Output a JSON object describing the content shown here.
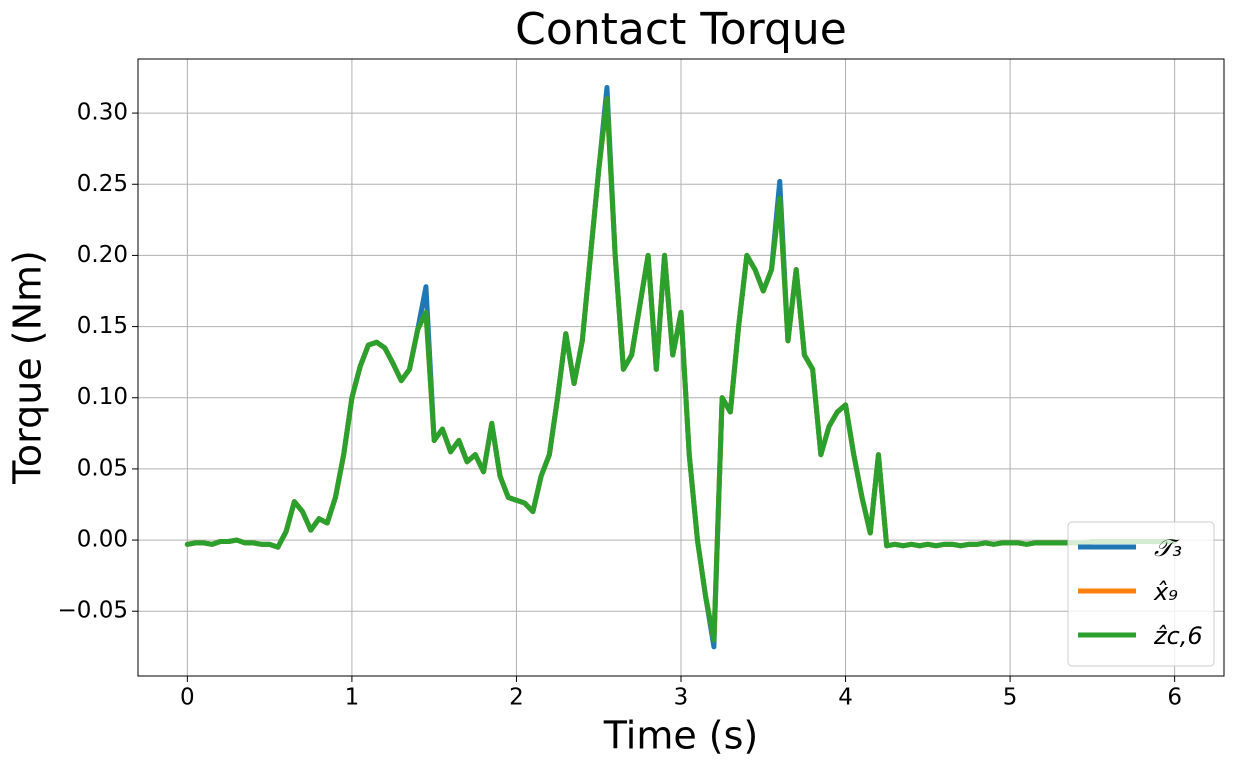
{
  "chart_data": {
    "type": "line",
    "title": "Contact Torque",
    "xlabel": "Time (s)",
    "ylabel": "Torque (Nm)",
    "x": [
      0,
      0.05,
      0.1,
      0.15,
      0.2,
      0.25,
      0.3,
      0.35,
      0.4,
      0.45,
      0.5,
      0.55,
      0.6,
      0.65,
      0.7,
      0.75,
      0.8,
      0.85,
      0.9,
      0.95,
      1,
      1.05,
      1.1,
      1.15,
      1.2,
      1.25,
      1.3,
      1.35,
      1.4,
      1.45,
      1.5,
      1.55,
      1.6,
      1.65,
      1.7,
      1.75,
      1.8,
      1.85,
      1.9,
      1.95,
      2,
      2.05,
      2.1,
      2.15,
      2.2,
      2.25,
      2.3,
      2.35,
      2.4,
      2.45,
      2.5,
      2.55,
      2.6,
      2.65,
      2.7,
      2.75,
      2.8,
      2.85,
      2.9,
      2.95,
      3,
      3.05,
      3.1,
      3.15,
      3.2,
      3.25,
      3.3,
      3.35,
      3.4,
      3.45,
      3.5,
      3.55,
      3.6,
      3.65,
      3.7,
      3.75,
      3.8,
      3.85,
      3.9,
      3.95,
      4,
      4.05,
      4.1,
      4.15,
      4.2,
      4.25,
      4.3,
      4.35,
      4.4,
      4.45,
      4.5,
      4.55,
      4.6,
      4.65,
      4.7,
      4.75,
      4.8,
      4.85,
      4.9,
      4.95,
      5,
      5.05,
      5.1,
      5.15,
      5.2,
      5.25,
      5.3,
      5.35,
      5.4,
      5.45,
      5.5,
      5.55,
      5.6,
      5.65,
      5.7,
      5.75,
      5.8,
      5.85,
      5.9,
      5.95,
      6
    ],
    "series": [
      {
        "name": "𝒯₃",
        "color": "#1f77b4",
        "values": [
          -0.003,
          -0.002,
          -0.002,
          -0.003,
          -0.001,
          -0.001,
          0,
          -0.002,
          -0.002,
          -0.003,
          -0.003,
          -0.005,
          0.006,
          0.027,
          0.02,
          0.007,
          0.015,
          0.012,
          0.03,
          0.06,
          0.1,
          0.122,
          0.137,
          0.139,
          0.135,
          0.124,
          0.112,
          0.12,
          0.148,
          0.178,
          0.07,
          0.078,
          0.062,
          0.07,
          0.055,
          0.06,
          0.048,
          0.082,
          0.045,
          0.03,
          0.028,
          0.026,
          0.02,
          0.045,
          0.06,
          0.1,
          0.145,
          0.11,
          0.14,
          0.2,
          0.26,
          0.318,
          0.2,
          0.12,
          0.13,
          0.165,
          0.2,
          0.12,
          0.2,
          0.13,
          0.16,
          0.06,
          0,
          -0.04,
          -0.075,
          0.1,
          0.09,
          0.15,
          0.2,
          0.19,
          0.175,
          0.19,
          0.252,
          0.14,
          0.19,
          0.13,
          0.12,
          0.06,
          0.08,
          0.09,
          0.095,
          0.06,
          0.03,
          0.005,
          0.06,
          -0.004,
          -0.003,
          -0.004,
          -0.003,
          -0.004,
          -0.003,
          -0.004,
          -0.003,
          -0.003,
          -0.004,
          -0.003,
          -0.003,
          -0.002,
          -0.003,
          -0.002,
          -0.002,
          -0.002,
          -0.003,
          -0.002,
          -0.002,
          -0.002,
          -0.002,
          -0.002,
          -0.002,
          -0.002,
          -0.001,
          -0.001,
          -0.001,
          -0.001,
          -0.001,
          -0.001,
          -0.001,
          -0.001,
          -0.001,
          -0.001,
          -0.001
        ]
      },
      {
        "name": "x̂₉",
        "color": "#ff7f0e",
        "values": [
          -0.003,
          -0.002,
          -0.002,
          -0.003,
          -0.001,
          -0.001,
          0,
          -0.002,
          -0.002,
          -0.003,
          -0.003,
          -0.005,
          0.006,
          0.027,
          0.02,
          0.007,
          0.015,
          0.012,
          0.03,
          0.06,
          0.1,
          0.122,
          0.137,
          0.139,
          0.135,
          0.124,
          0.112,
          0.12,
          0.148,
          0.16,
          0.07,
          0.078,
          0.062,
          0.07,
          0.055,
          0.06,
          0.048,
          0.082,
          0.045,
          0.03,
          0.028,
          0.026,
          0.02,
          0.045,
          0.06,
          0.1,
          0.145,
          0.11,
          0.14,
          0.2,
          0.26,
          0.31,
          0.2,
          0.12,
          0.13,
          0.165,
          0.2,
          0.12,
          0.2,
          0.13,
          0.16,
          0.06,
          0,
          -0.04,
          -0.07,
          0.1,
          0.09,
          0.15,
          0.2,
          0.19,
          0.175,
          0.19,
          0.24,
          0.14,
          0.19,
          0.13,
          0.12,
          0.06,
          0.08,
          0.09,
          0.095,
          0.06,
          0.03,
          0.005,
          0.06,
          -0.004,
          -0.003,
          -0.004,
          -0.003,
          -0.004,
          -0.003,
          -0.004,
          -0.003,
          -0.003,
          -0.004,
          -0.003,
          -0.003,
          -0.002,
          -0.003,
          -0.002,
          -0.002,
          -0.002,
          -0.003,
          -0.002,
          -0.002,
          -0.002,
          -0.002,
          -0.002,
          -0.002,
          -0.002,
          -0.001,
          -0.001,
          -0.001,
          -0.001,
          -0.001,
          -0.001,
          -0.001,
          -0.001,
          -0.001,
          -0.001,
          -0.001
        ]
      },
      {
        "name": "ẑc,6",
        "color": "#2ca02c",
        "values": [
          -0.003,
          -0.002,
          -0.002,
          -0.003,
          -0.001,
          -0.001,
          0,
          -0.002,
          -0.002,
          -0.003,
          -0.003,
          -0.005,
          0.006,
          0.027,
          0.02,
          0.007,
          0.015,
          0.012,
          0.03,
          0.06,
          0.1,
          0.122,
          0.137,
          0.139,
          0.135,
          0.124,
          0.112,
          0.12,
          0.148,
          0.16,
          0.07,
          0.078,
          0.062,
          0.07,
          0.055,
          0.06,
          0.048,
          0.082,
          0.045,
          0.03,
          0.028,
          0.026,
          0.02,
          0.045,
          0.06,
          0.1,
          0.145,
          0.11,
          0.14,
          0.2,
          0.26,
          0.31,
          0.2,
          0.12,
          0.13,
          0.165,
          0.2,
          0.12,
          0.2,
          0.13,
          0.16,
          0.06,
          0,
          -0.04,
          -0.07,
          0.1,
          0.09,
          0.15,
          0.2,
          0.19,
          0.175,
          0.19,
          0.24,
          0.14,
          0.19,
          0.13,
          0.12,
          0.06,
          0.08,
          0.09,
          0.095,
          0.06,
          0.03,
          0.005,
          0.06,
          -0.004,
          -0.003,
          -0.004,
          -0.003,
          -0.004,
          -0.003,
          -0.004,
          -0.003,
          -0.003,
          -0.004,
          -0.003,
          -0.003,
          -0.002,
          -0.003,
          -0.002,
          -0.002,
          -0.002,
          -0.003,
          -0.002,
          -0.002,
          -0.002,
          -0.002,
          -0.002,
          -0.002,
          -0.002,
          -0.001,
          -0.001,
          -0.001,
          -0.001,
          -0.001,
          -0.001,
          -0.001,
          -0.001,
          -0.001,
          -0.001,
          -0.001
        ]
      }
    ],
    "xlim": [
      -0.3,
      6.3
    ],
    "ylim": [
      -0.0955,
      0.338
    ],
    "xticks": [
      0,
      1,
      2,
      3,
      4,
      5,
      6
    ],
    "yticks": [
      {
        "value": -0.05,
        "label": "−0.05"
      },
      {
        "value": 0,
        "label": "0.00"
      },
      {
        "value": 0.05,
        "label": "0.05"
      },
      {
        "value": 0.1,
        "label": "0.10"
      },
      {
        "value": 0.15,
        "label": "0.15"
      },
      {
        "value": 0.2,
        "label": "0.20"
      },
      {
        "value": 0.25,
        "label": "0.25"
      },
      {
        "value": 0.3,
        "label": "0.30"
      }
    ],
    "grid": true,
    "legend": "lower right"
  }
}
